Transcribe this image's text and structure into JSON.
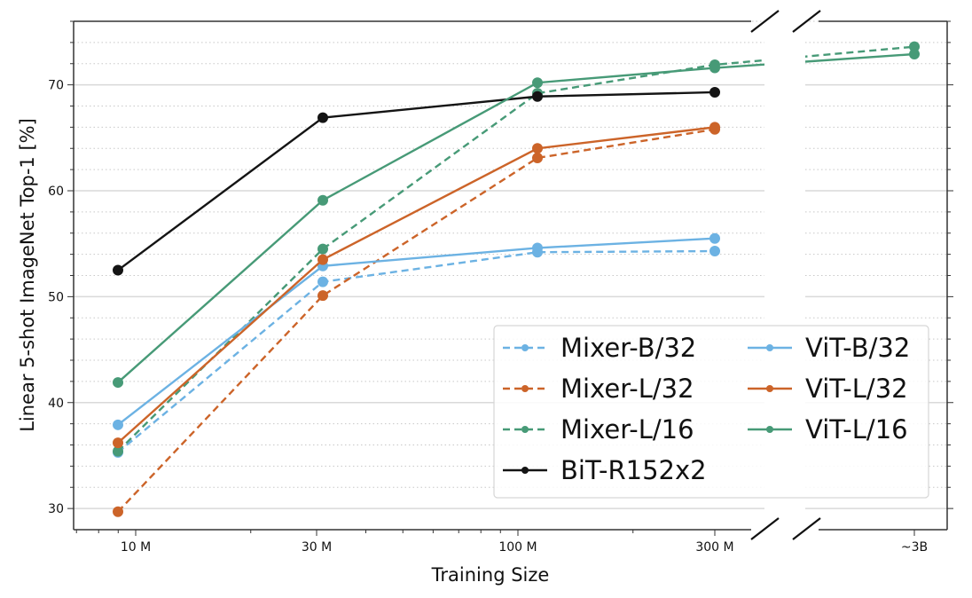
{
  "chart_data": {
    "type": "line",
    "title": "",
    "xlabel": "Training Size",
    "ylabel": "Linear 5-shot ImageNet Top-1 [%]",
    "x_scale": "log (broken axis)",
    "x_ticks": [
      "10 M",
      "30 M",
      "100 M",
      "300 M",
      "~3B"
    ],
    "y_ticks": [
      "30",
      "40",
      "50",
      "60",
      "70"
    ],
    "y_tick_values": [
      30,
      40,
      50,
      60,
      70
    ],
    "ylim": [
      28,
      76
    ],
    "grid": "major solid, minor dotted (horizontal)",
    "legend_position": "bottom-right",
    "legend_columns": 2,
    "x_points": [
      "~9M",
      "~30M",
      "~100M",
      "~300M",
      "~3B"
    ],
    "series": [
      {
        "name": "Mixer-B/32",
        "color": "#6cb2e3",
        "style": "dashed",
        "values": [
          35.3,
          51.4,
          54.2,
          54.3,
          null
        ]
      },
      {
        "name": "Mixer-L/32",
        "color": "#cc6429",
        "style": "dashed",
        "values": [
          29.7,
          50.1,
          63.1,
          65.8,
          null
        ]
      },
      {
        "name": "Mixer-L/16",
        "color": "#479a77",
        "style": "dashed",
        "values": [
          35.4,
          54.5,
          69.2,
          71.9,
          73.6
        ]
      },
      {
        "name": "BiT-R152x2",
        "color": "#141414",
        "style": "solid",
        "values": [
          52.5,
          66.9,
          68.9,
          69.3,
          null
        ]
      },
      {
        "name": "ViT-B/32",
        "color": "#6cb2e3",
        "style": "solid",
        "values": [
          37.9,
          52.9,
          54.6,
          55.5,
          null
        ]
      },
      {
        "name": "ViT-L/32",
        "color": "#cc6429",
        "style": "solid",
        "values": [
          36.2,
          53.5,
          64.0,
          66.0,
          null
        ]
      },
      {
        "name": "ViT-L/16",
        "color": "#479a77",
        "style": "solid",
        "values": [
          41.9,
          59.1,
          70.2,
          71.6,
          72.9
        ]
      }
    ]
  }
}
